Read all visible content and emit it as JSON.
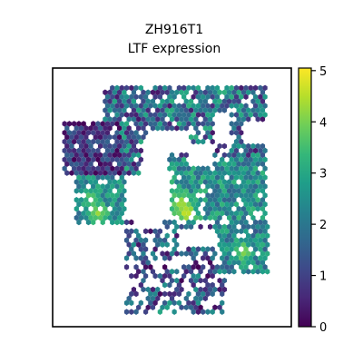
{
  "chart_data": {
    "type": "scatter",
    "title": "ZH916T1",
    "subtitle": "LTF expression",
    "xlabel": "",
    "ylabel": "",
    "grid": false,
    "marker": "hexagon",
    "colormap": "viridis",
    "colorbar": {
      "placement": "right",
      "range": [
        0,
        5.05
      ],
      "ticks": [
        0,
        1,
        2,
        3,
        4,
        5
      ],
      "tick_labels": [
        "0",
        "1",
        "2",
        "3",
        "4",
        "5"
      ]
    },
    "xlim": [
      0,
      100
    ],
    "ylim": [
      0,
      100
    ],
    "regions": [
      {
        "x": [
          22,
          89
        ],
        "y": [
          58,
          94
        ],
        "range": [
          0.3,
          3.2
        ]
      },
      {
        "x": [
          5,
          28
        ],
        "y": [
          58,
          80
        ],
        "range": [
          0.0,
          1.6
        ]
      },
      {
        "x": [
          10,
          30
        ],
        "y": [
          40,
          58
        ],
        "range": [
          1.6,
          3.2
        ]
      },
      {
        "x": [
          50,
          89
        ],
        "y": [
          40,
          66
        ],
        "range": [
          1.6,
          3.4
        ]
      },
      {
        "x": [
          30,
          72
        ],
        "y": [
          5,
          42
        ],
        "range": [
          0.0,
          2.6
        ]
      },
      {
        "x": [
          68,
          90
        ],
        "y": [
          20,
          42
        ],
        "range": [
          1.4,
          3.2
        ]
      }
    ],
    "hotspots": [
      {
        "x": 56,
        "y": 44,
        "value": 4.7
      },
      {
        "x": 54,
        "y": 48,
        "value": 4.4
      },
      {
        "x": 80,
        "y": 29,
        "value": 4.1
      },
      {
        "x": 19,
        "y": 44,
        "value": 4.3
      },
      {
        "x": 16,
        "y": 50,
        "value": 3.7
      },
      {
        "x": 48,
        "y": 53,
        "value": 3.5
      },
      {
        "x": 71,
        "y": 91,
        "value": 3.4
      },
      {
        "x": 48,
        "y": 5,
        "value": 3.9
      }
    ],
    "holes": [
      {
        "x": [
          40,
          57
        ],
        "y": [
          67,
          76
        ]
      },
      {
        "x": [
          38,
          48
        ],
        "y": [
          56,
          72
        ]
      },
      {
        "x": [
          57,
          67
        ],
        "y": [
          62,
          70
        ]
      },
      {
        "x": [
          68,
          74
        ],
        "y": [
          70,
          82
        ]
      },
      {
        "x": [
          80,
          90
        ],
        "y": [
          70,
          80
        ]
      },
      {
        "x": [
          34,
          46
        ],
        "y": [
          38,
          50
        ]
      },
      {
        "x": [
          54,
          68
        ],
        "y": [
          30,
          38
        ]
      },
      {
        "x": [
          72,
          90
        ],
        "y": [
          0,
          14
        ]
      },
      {
        "x": [
          0,
          30
        ],
        "y": [
          0,
          40
        ]
      }
    ]
  },
  "colors": {
    "background": "#ffffff",
    "axes_edge": "#000000",
    "viridis": [
      "#440154",
      "#482878",
      "#3e4989",
      "#31688e",
      "#26828e",
      "#1f9e89",
      "#35b779",
      "#6ece58",
      "#b5de2b",
      "#fde725"
    ]
  }
}
